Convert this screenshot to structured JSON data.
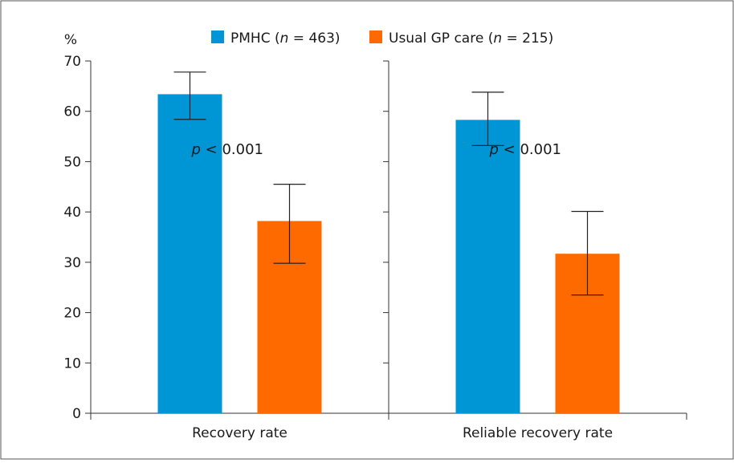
{
  "chart_data": {
    "type": "bar",
    "ylabel": "%",
    "ylim": [
      0,
      70
    ],
    "yticks": [
      0,
      10,
      20,
      30,
      40,
      50,
      60,
      70
    ],
    "grid": false,
    "legend_position": "top-center",
    "categories": [
      "Recovery rate",
      "Reliable recovery rate"
    ],
    "series": [
      {
        "name_parts": [
          "PMHC (",
          "n",
          " = 463)"
        ],
        "color": "#0096d6",
        "values": [
          63.4,
          58.3
        ],
        "error_low": [
          58.4,
          53.2
        ],
        "error_high": [
          67.8,
          63.8
        ]
      },
      {
        "name_parts": [
          "Usual GP care (",
          "n",
          " = 215)"
        ],
        "color": "#ff6a00",
        "values": [
          38.2,
          31.7
        ],
        "error_low": [
          29.8,
          23.5
        ],
        "error_high": [
          45.5,
          40.1
        ]
      }
    ],
    "annotations": [
      {
        "category": 0,
        "italic": "p",
        "rest": " < 0.001",
        "y": 51.5
      },
      {
        "category": 1,
        "italic": "p",
        "rest": " < 0.001",
        "y": 51.5
      }
    ]
  }
}
